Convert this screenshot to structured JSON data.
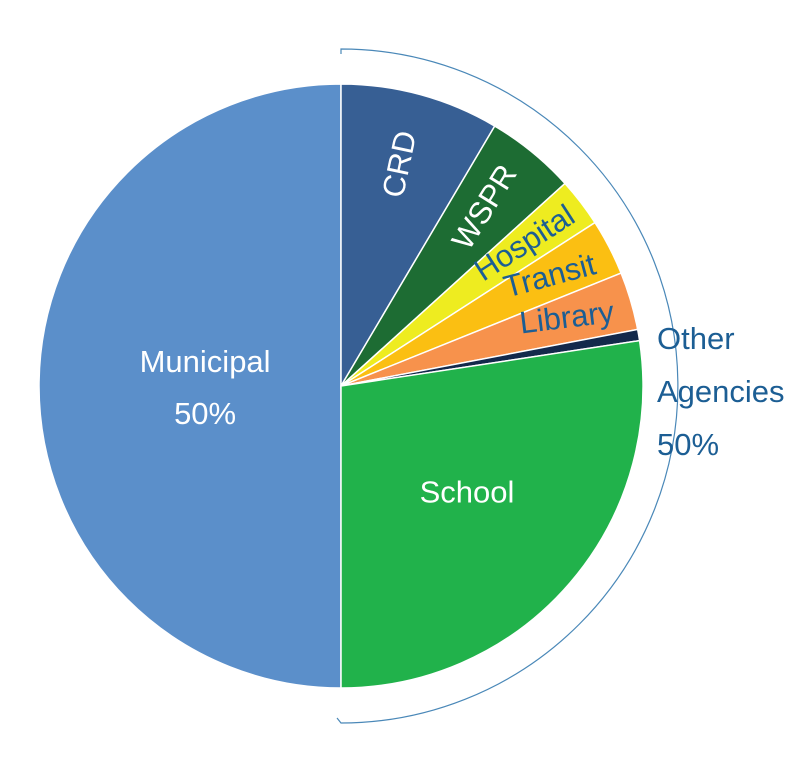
{
  "chart_data": {
    "type": "pie",
    "slices": [
      {
        "label": "Municipal",
        "value_label": "50%",
        "value": 50,
        "color": "#5b8fca",
        "label_color": "#ffffff"
      },
      {
        "label": "CRD",
        "value": 8.5,
        "color": "#375f94",
        "label_color": "#ffffff"
      },
      {
        "label": "WSPR",
        "value": 4.8,
        "color": "#1d6c33",
        "label_color": "#ffffff"
      },
      {
        "label": "Hospital",
        "value": 2.6,
        "color": "#eeec20",
        "label_color": "#1c5e94"
      },
      {
        "label": "Transit",
        "value": 3.0,
        "color": "#fbbf12",
        "label_color": "#1c5e94"
      },
      {
        "label": "Library",
        "value": 3.1,
        "color": "#f7924c",
        "label_color": "#1c5e94"
      },
      {
        "label": "",
        "value": 0.6,
        "color": "#13294b",
        "label_color": "#ffffff"
      },
      {
        "label": "School",
        "value": 27.4,
        "color": "#21b24b",
        "label_color": "#ffffff"
      }
    ],
    "group_annotation": {
      "lines": [
        "Other",
        "Agencies",
        "50%"
      ],
      "color": "#1c5e94",
      "bracket_color": "#4a88b8"
    }
  }
}
